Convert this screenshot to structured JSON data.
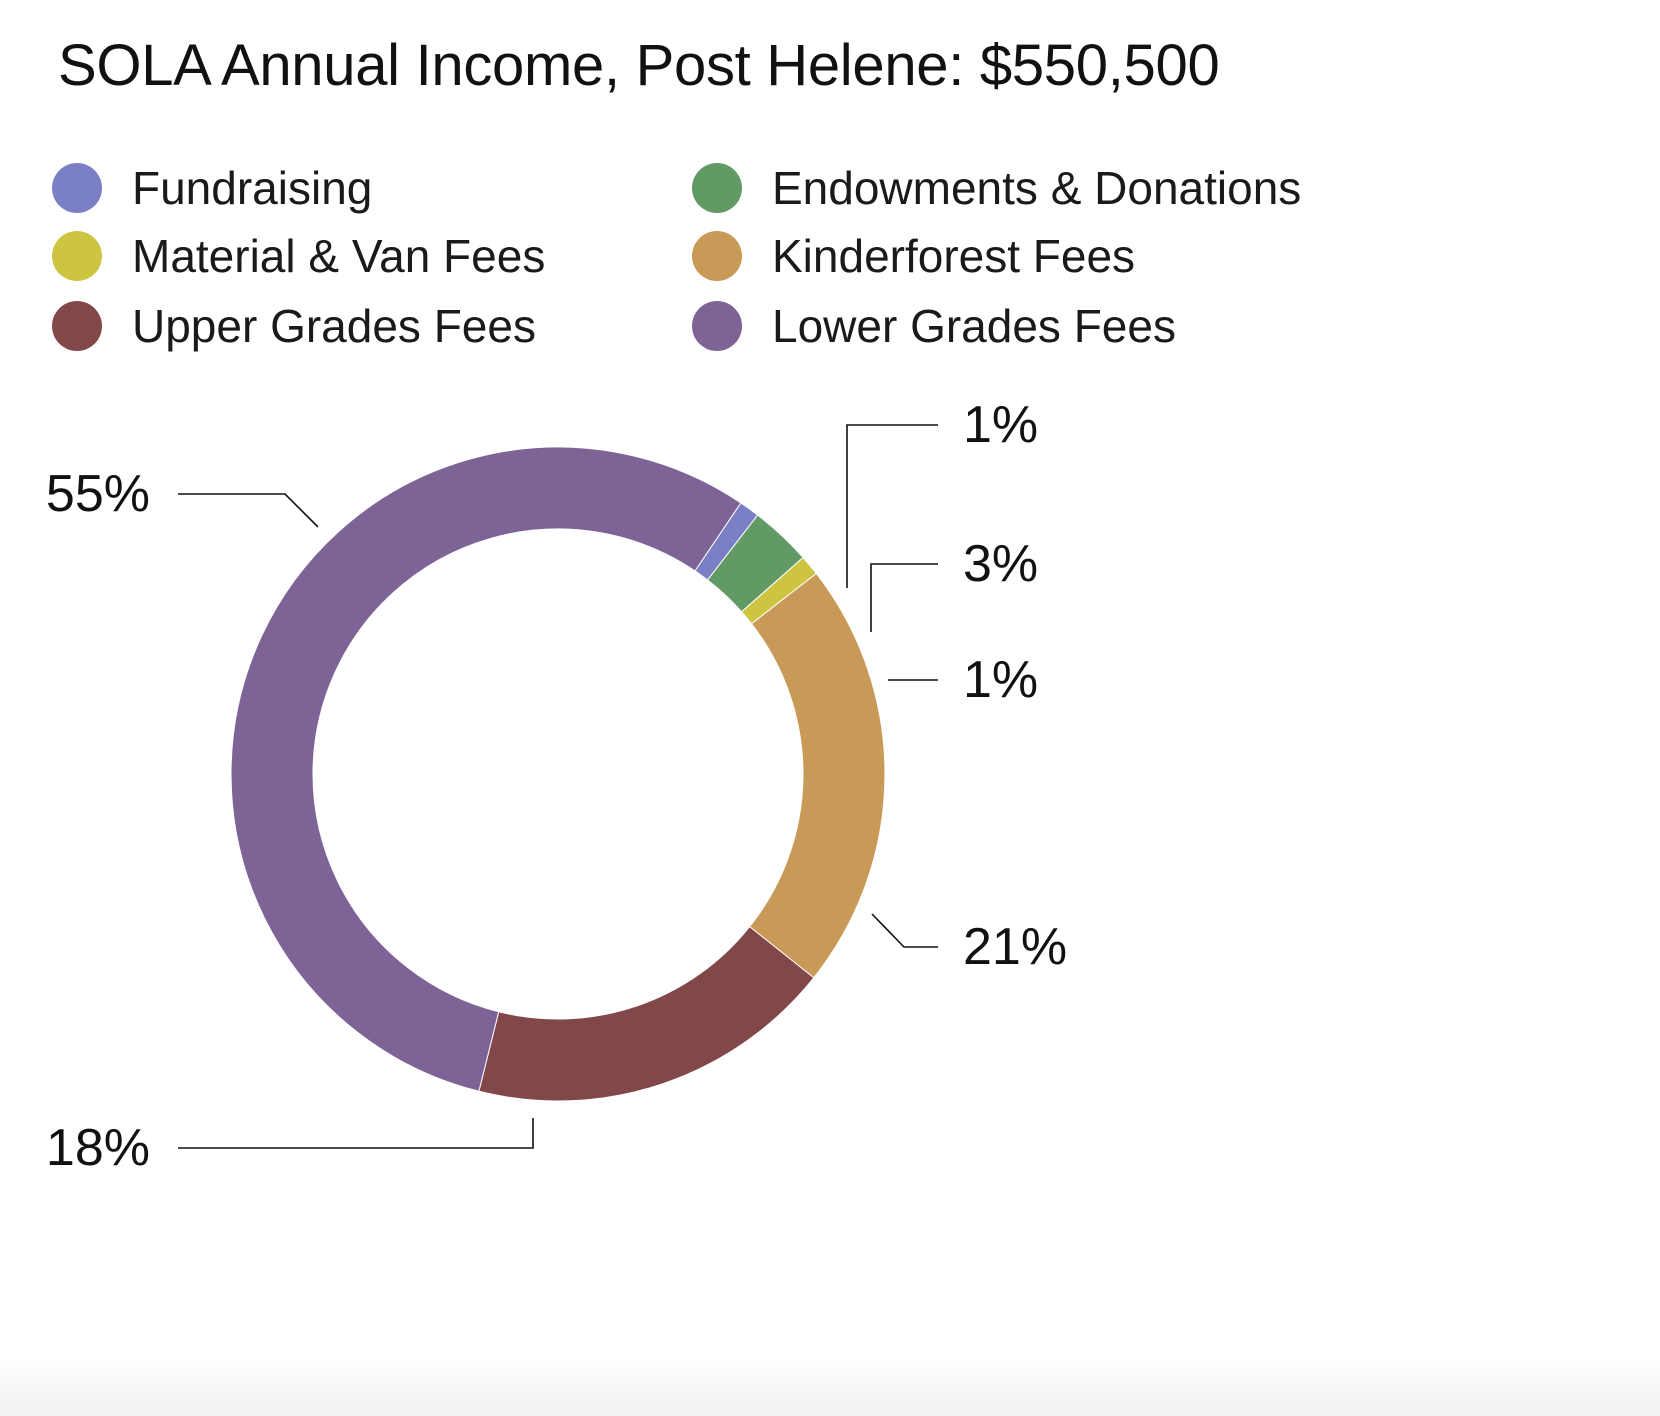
{
  "chart_data": {
    "type": "pie",
    "title": "SOLA Annual Income, Post Helene: $550,500",
    "donut": true,
    "legend_position": "top",
    "series": [
      {
        "name": "Fundraising",
        "value": 1,
        "label": "1%",
        "color": "#7b80c6"
      },
      {
        "name": "Endowments & Donations",
        "value": 3,
        "label": "3%",
        "color": "#629a66"
      },
      {
        "name": "Material & Van Fees",
        "value": 1,
        "label": "1%",
        "color": "#cdc542"
      },
      {
        "name": "Kinderforest Fees",
        "value": 21,
        "label": "21%",
        "color": "#c99a57"
      },
      {
        "name": "Upper Grades Fees",
        "value": 18,
        "label": "18%",
        "color": "#824749"
      },
      {
        "name": "Lower Grades Fees",
        "value": 55,
        "label": "55%",
        "color": "#7d6396"
      }
    ]
  }
}
